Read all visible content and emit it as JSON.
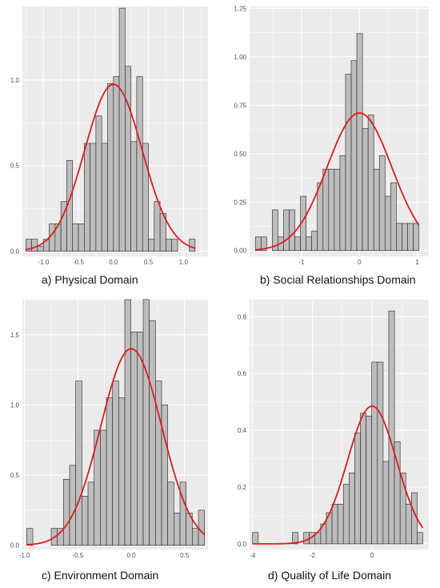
{
  "colors": {
    "panel_background": "#ebebeb",
    "gridline": "#ffffff",
    "bar_fill": "#bdbdbd",
    "bar_stroke": "#222222",
    "density_curve": "#e31a1c",
    "tick_text": "#4d4d4d"
  },
  "chart_data": [
    {
      "type": "bar",
      "subtype": "histogram-with-normal-density",
      "caption": "a) Physical Domain",
      "xlim": [
        -1.3,
        1.35
      ],
      "ylim": [
        -0.03,
        1.43
      ],
      "x_ticks": [
        {
          "value": -1.0,
          "label": "-1.0"
        },
        {
          "value": -0.5,
          "label": "-0.5"
        },
        {
          "value": 0.0,
          "label": "0.0"
        },
        {
          "value": 0.5,
          "label": "0.5"
        },
        {
          "value": 1.0,
          "label": "1.0"
        }
      ],
      "y_ticks": [
        {
          "value": 0.0,
          "label": "0.0"
        },
        {
          "value": 0.5,
          "label": "0.5"
        },
        {
          "value": 1.0,
          "label": "1.0"
        }
      ],
      "bins": {
        "start": -1.25,
        "width": 0.0833,
        "values": [
          0.07,
          0.07,
          0.03,
          0.07,
          0.16,
          0.16,
          0.29,
          0.53,
          0.16,
          0.16,
          0.63,
          0.63,
          0.79,
          0.63,
          0.98,
          1.02,
          1.42,
          1.08,
          0.64,
          1.02,
          0.63,
          0.07,
          0.29,
          0.22,
          0.07,
          0.07,
          0.0,
          0.0,
          0.07
        ]
      },
      "density": {
        "mean": 0.0,
        "sd": 0.41,
        "scale": 0.975
      },
      "grid": true
    },
    {
      "type": "bar",
      "subtype": "histogram-with-normal-density",
      "caption": "b) Social Relationships Domain",
      "xlim": [
        -1.9,
        1.2
      ],
      "ylim": [
        -0.03,
        1.26
      ],
      "x_ticks": [
        {
          "value": -1,
          "label": "-1"
        },
        {
          "value": 0,
          "label": "0"
        },
        {
          "value": 1,
          "label": "1"
        }
      ],
      "y_ticks": [
        {
          "value": 0.0,
          "label": "0.00"
        },
        {
          "value": 0.25,
          "label": "0.25"
        },
        {
          "value": 0.5,
          "label": "0.50"
        },
        {
          "value": 0.75,
          "label": "0.75"
        },
        {
          "value": 1.0,
          "label": "1.00"
        },
        {
          "value": 1.25,
          "label": "1.25"
        }
      ],
      "bins": {
        "start": -1.8,
        "width": 0.0975,
        "values": [
          0.07,
          0.07,
          0.0,
          0.21,
          0.07,
          0.21,
          0.21,
          0.07,
          0.28,
          0.07,
          0.1,
          0.35,
          0.42,
          0.42,
          0.42,
          0.49,
          0.91,
          0.98,
          1.12,
          0.63,
          0.7,
          0.42,
          0.49,
          0.28,
          0.35,
          0.14,
          0.14,
          0.14,
          0.14
        ]
      },
      "density": {
        "mean": 0.0,
        "sd": 0.56,
        "scale": 0.71
      },
      "grid": true
    },
    {
      "type": "bar",
      "subtype": "histogram-with-normal-density",
      "caption": "c) Environment  Domain",
      "xlim": [
        -1.02,
        0.72
      ],
      "ylim": [
        -0.03,
        1.75
      ],
      "x_ticks": [
        {
          "value": -1.0,
          "label": "-1.0"
        },
        {
          "value": -0.5,
          "label": "-0.5"
        },
        {
          "value": 0.0,
          "label": "0.0"
        },
        {
          "value": 0.5,
          "label": "0.5"
        }
      ],
      "y_ticks": [
        {
          "value": 0.0,
          "label": "0.0"
        },
        {
          "value": 0.5,
          "label": "0.5"
        },
        {
          "value": 1.0,
          "label": "1.0"
        },
        {
          "value": 1.5,
          "label": "1.5"
        }
      ],
      "bins": {
        "start": -0.98,
        "width": 0.0575,
        "values": [
          0.12,
          0.0,
          0.0,
          0.0,
          0.12,
          0.12,
          0.47,
          0.57,
          1.17,
          0.35,
          0.45,
          0.82,
          0.82,
          1.05,
          1.17,
          1.05,
          1.75,
          1.52,
          1.52,
          1.75,
          1.6,
          1.17,
          1.0,
          0.45,
          0.23,
          0.45,
          0.23,
          0.12,
          0.25
        ]
      },
      "density": {
        "mean": 0.0,
        "sd": 0.285,
        "scale": 1.4
      },
      "grid": true
    },
    {
      "type": "bar",
      "subtype": "histogram-with-normal-density",
      "caption": "d) Quality of Life Domain",
      "xlim": [
        -4.1,
        1.9
      ],
      "ylim": [
        -0.02,
        0.86
      ],
      "x_ticks": [
        {
          "value": -4,
          "label": "-4"
        },
        {
          "value": -2,
          "label": "-2"
        },
        {
          "value": 0,
          "label": "0"
        }
      ],
      "y_ticks": [
        {
          "value": 0.0,
          "label": "0.0"
        },
        {
          "value": 0.2,
          "label": "0.2"
        },
        {
          "value": 0.4,
          "label": "0.4"
        },
        {
          "value": 0.6,
          "label": "0.6"
        },
        {
          "value": 0.8,
          "label": "0.8"
        }
      ],
      "bins": {
        "start": -4.0,
        "width": 0.19,
        "values": [
          0.04,
          0.0,
          0.0,
          0.0,
          0.0,
          0.0,
          0.0,
          0.04,
          0.0,
          0.04,
          0.04,
          0.04,
          0.07,
          0.11,
          0.14,
          0.14,
          0.21,
          0.25,
          0.39,
          0.46,
          0.45,
          0.64,
          0.64,
          0.29,
          0.82,
          0.36,
          0.25,
          0.14,
          0.18,
          0.04
        ]
      },
      "density": {
        "mean": 0.0,
        "sd": 0.82,
        "scale": 0.485
      },
      "grid": true
    }
  ]
}
